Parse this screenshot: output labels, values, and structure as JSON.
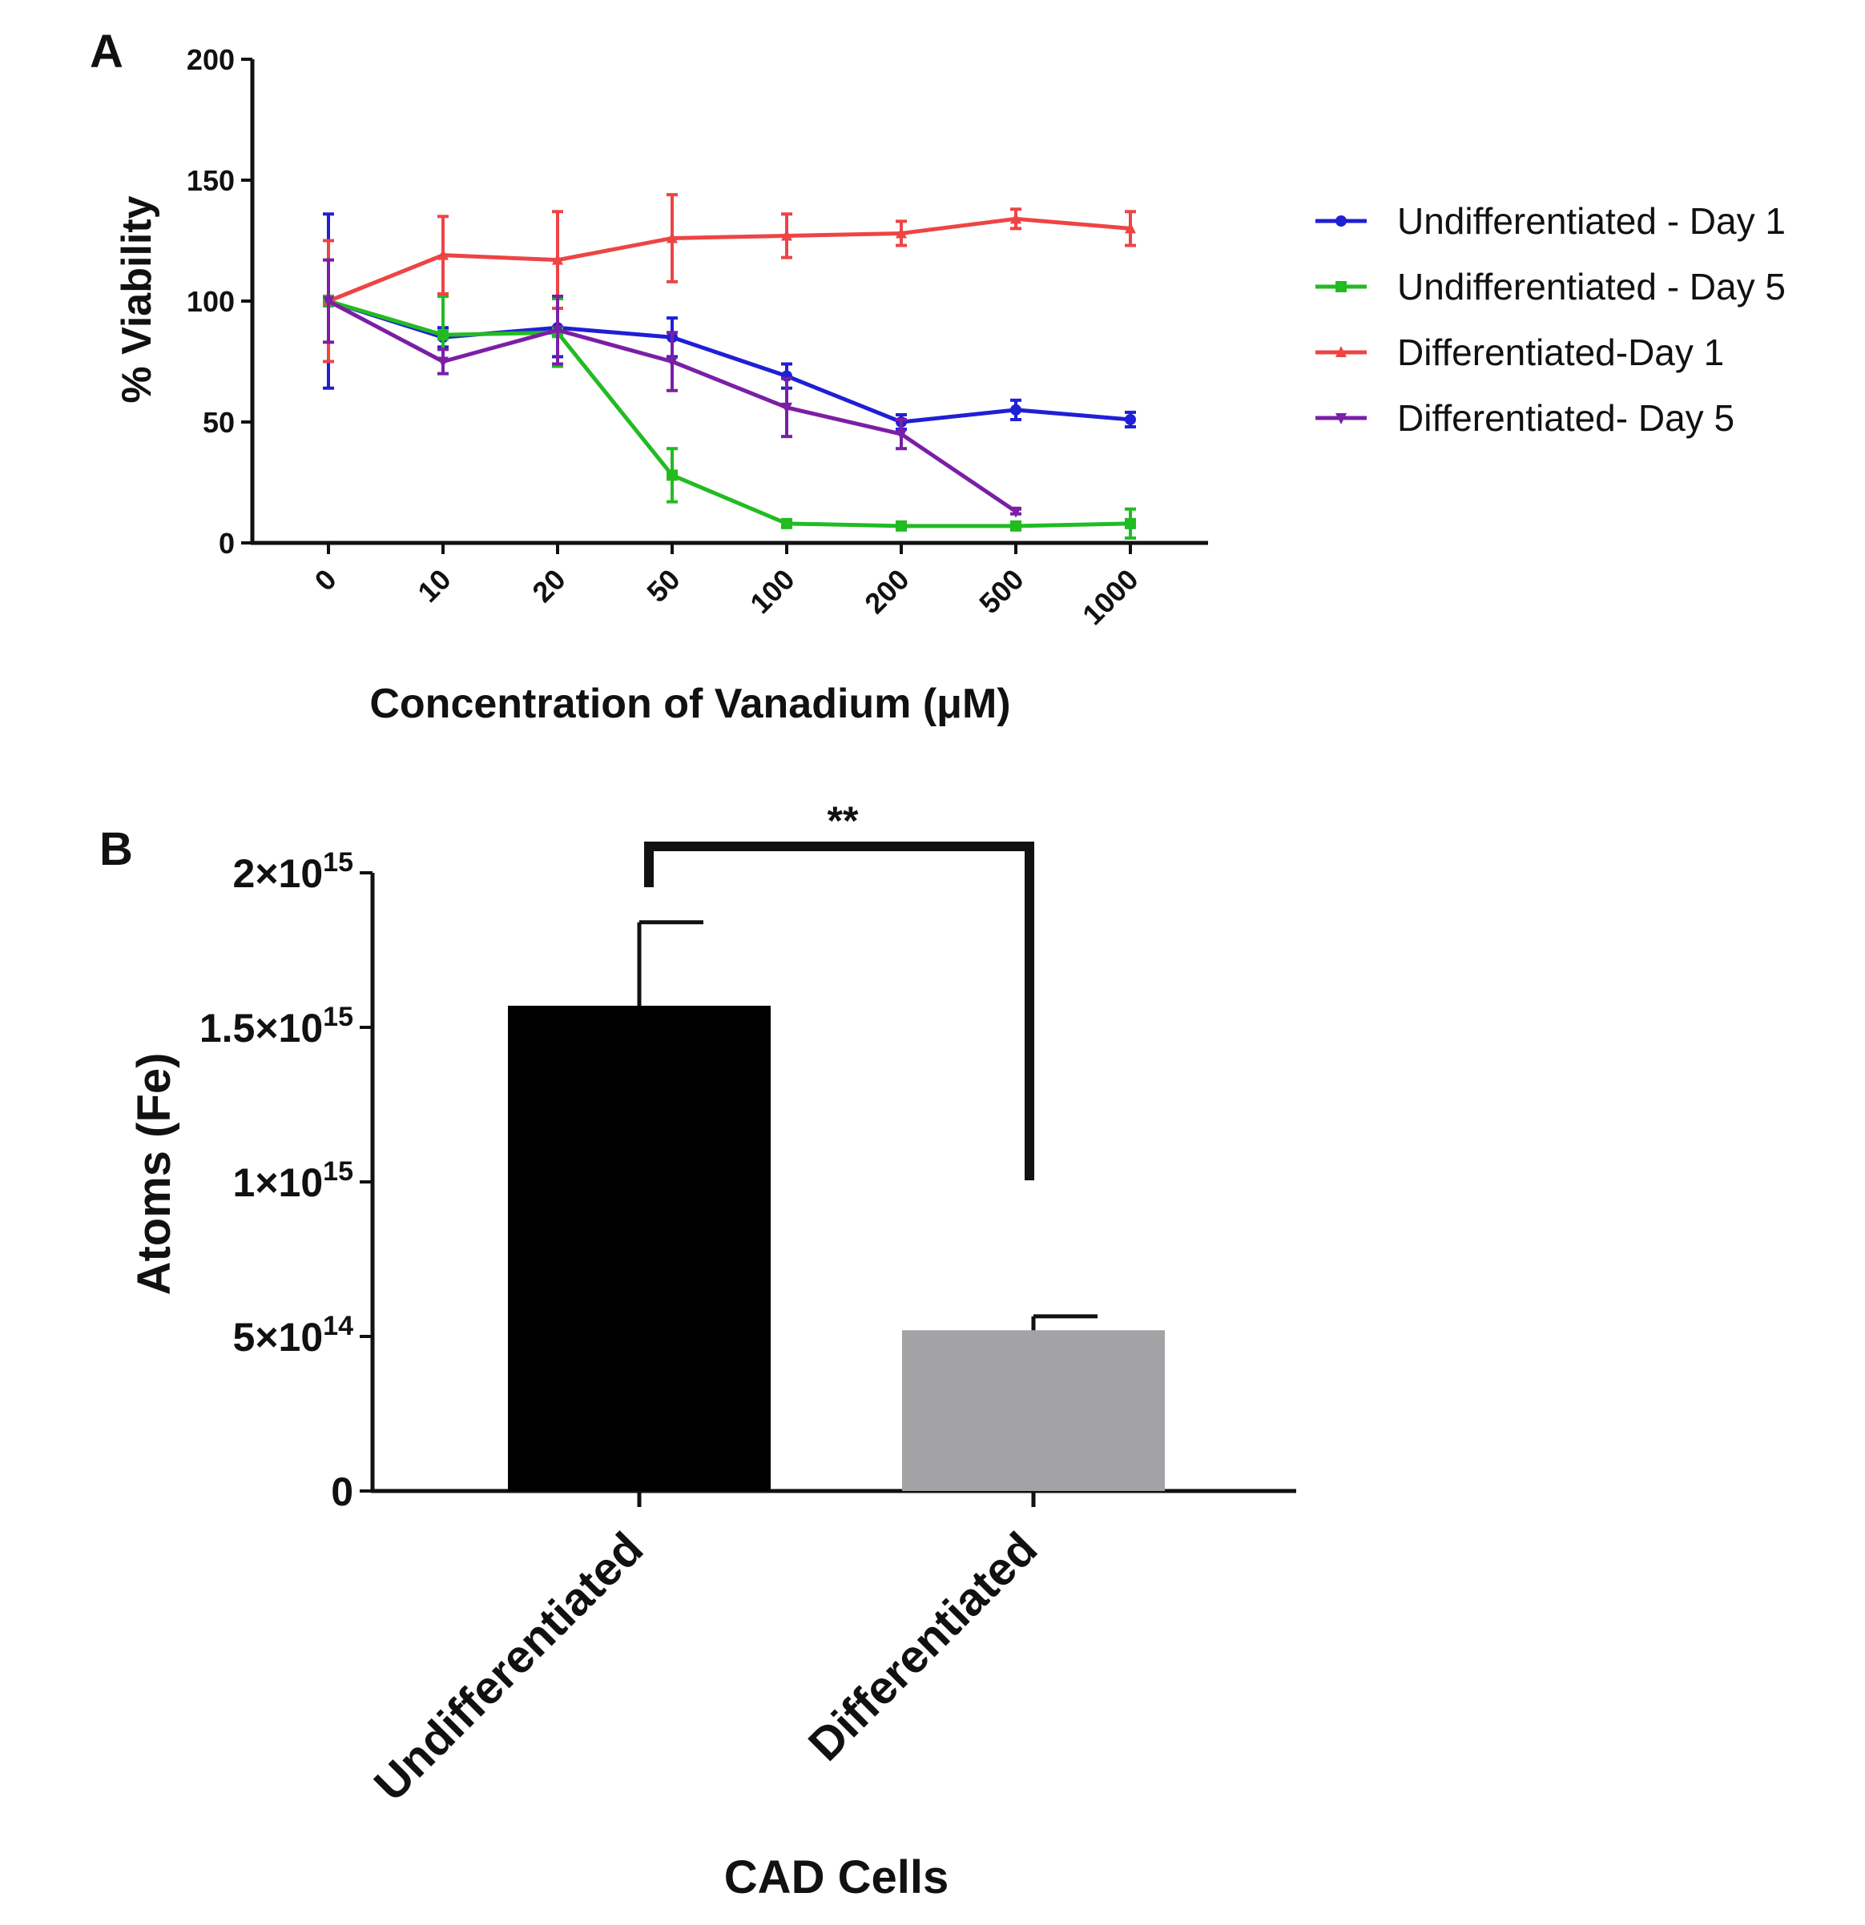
{
  "panels": {
    "a_label": "A",
    "b_label": "B"
  },
  "chart_data": [
    {
      "type": "line",
      "panel": "A",
      "xlabel": "Concentration of Vanadium (μM)",
      "ylabel": "% Viability",
      "x_scale": "categorical (equally spaced)",
      "categories": [
        "0",
        "10",
        "20",
        "50",
        "100",
        "200",
        "500",
        "1000"
      ],
      "ylim": [
        0,
        200
      ],
      "yticks": [
        "0",
        "50",
        "100",
        "150",
        "200"
      ],
      "legend_position": "right",
      "series": [
        {
          "name": "Undifferentiated - Day 1",
          "color": "#1f1fd6",
          "marker": "circle",
          "values": [
            100,
            85,
            89,
            85,
            69,
            50,
            55,
            51
          ],
          "errors": [
            36,
            4,
            12,
            8,
            5,
            3,
            4,
            3
          ]
        },
        {
          "name": "Undifferentiated - Day 5",
          "color": "#22bb22",
          "marker": "square",
          "values": [
            100,
            86,
            87,
            28,
            8,
            7,
            7,
            8
          ],
          "errors": [
            2,
            16,
            14,
            11,
            1,
            1,
            1,
            6
          ]
        },
        {
          "name": "Differentiated-Day 1",
          "color": "#ee4444",
          "marker": "triangle-up",
          "values": [
            100,
            119,
            117,
            126,
            127,
            128,
            134,
            130
          ],
          "errors": [
            25,
            16,
            20,
            18,
            9,
            5,
            4,
            7
          ]
        },
        {
          "name": "Differentiated- Day 5",
          "color": "#7a1fa6",
          "marker": "triangle-down",
          "values": [
            100,
            75,
            88,
            75,
            56,
            45,
            13,
            null
          ],
          "errors": [
            17,
            5,
            14,
            12,
            12,
            6,
            1,
            null
          ]
        }
      ]
    },
    {
      "type": "bar",
      "panel": "B",
      "xlabel": "CAD Cells",
      "ylabel": "Atoms (Fe)",
      "categories": [
        "Undifferentiated",
        "Differentiated"
      ],
      "values": [
        1570000000000000.0,
        520000000000000.0
      ],
      "errors": [
        270000000000000.0,
        45000000000000.0
      ],
      "colors": [
        "#000000",
        "#a3a3a6"
      ],
      "ylim": [
        0,
        2000000000000000.0
      ],
      "yticks": [
        {
          "value": 0,
          "mantissa": "0",
          "exponent": ""
        },
        {
          "value": 500000000000000.0,
          "mantissa": "5×10",
          "exponent": "14"
        },
        {
          "value": 1000000000000000.0,
          "mantissa": "1×10",
          "exponent": "15"
        },
        {
          "value": 1500000000000000.0,
          "mantissa": "1.5×10",
          "exponent": "15"
        },
        {
          "value": 2000000000000000.0,
          "mantissa": "2×10",
          "exponent": "15"
        }
      ],
      "significance": {
        "label": "**",
        "between": [
          "Undifferentiated",
          "Differentiated"
        ]
      }
    }
  ]
}
